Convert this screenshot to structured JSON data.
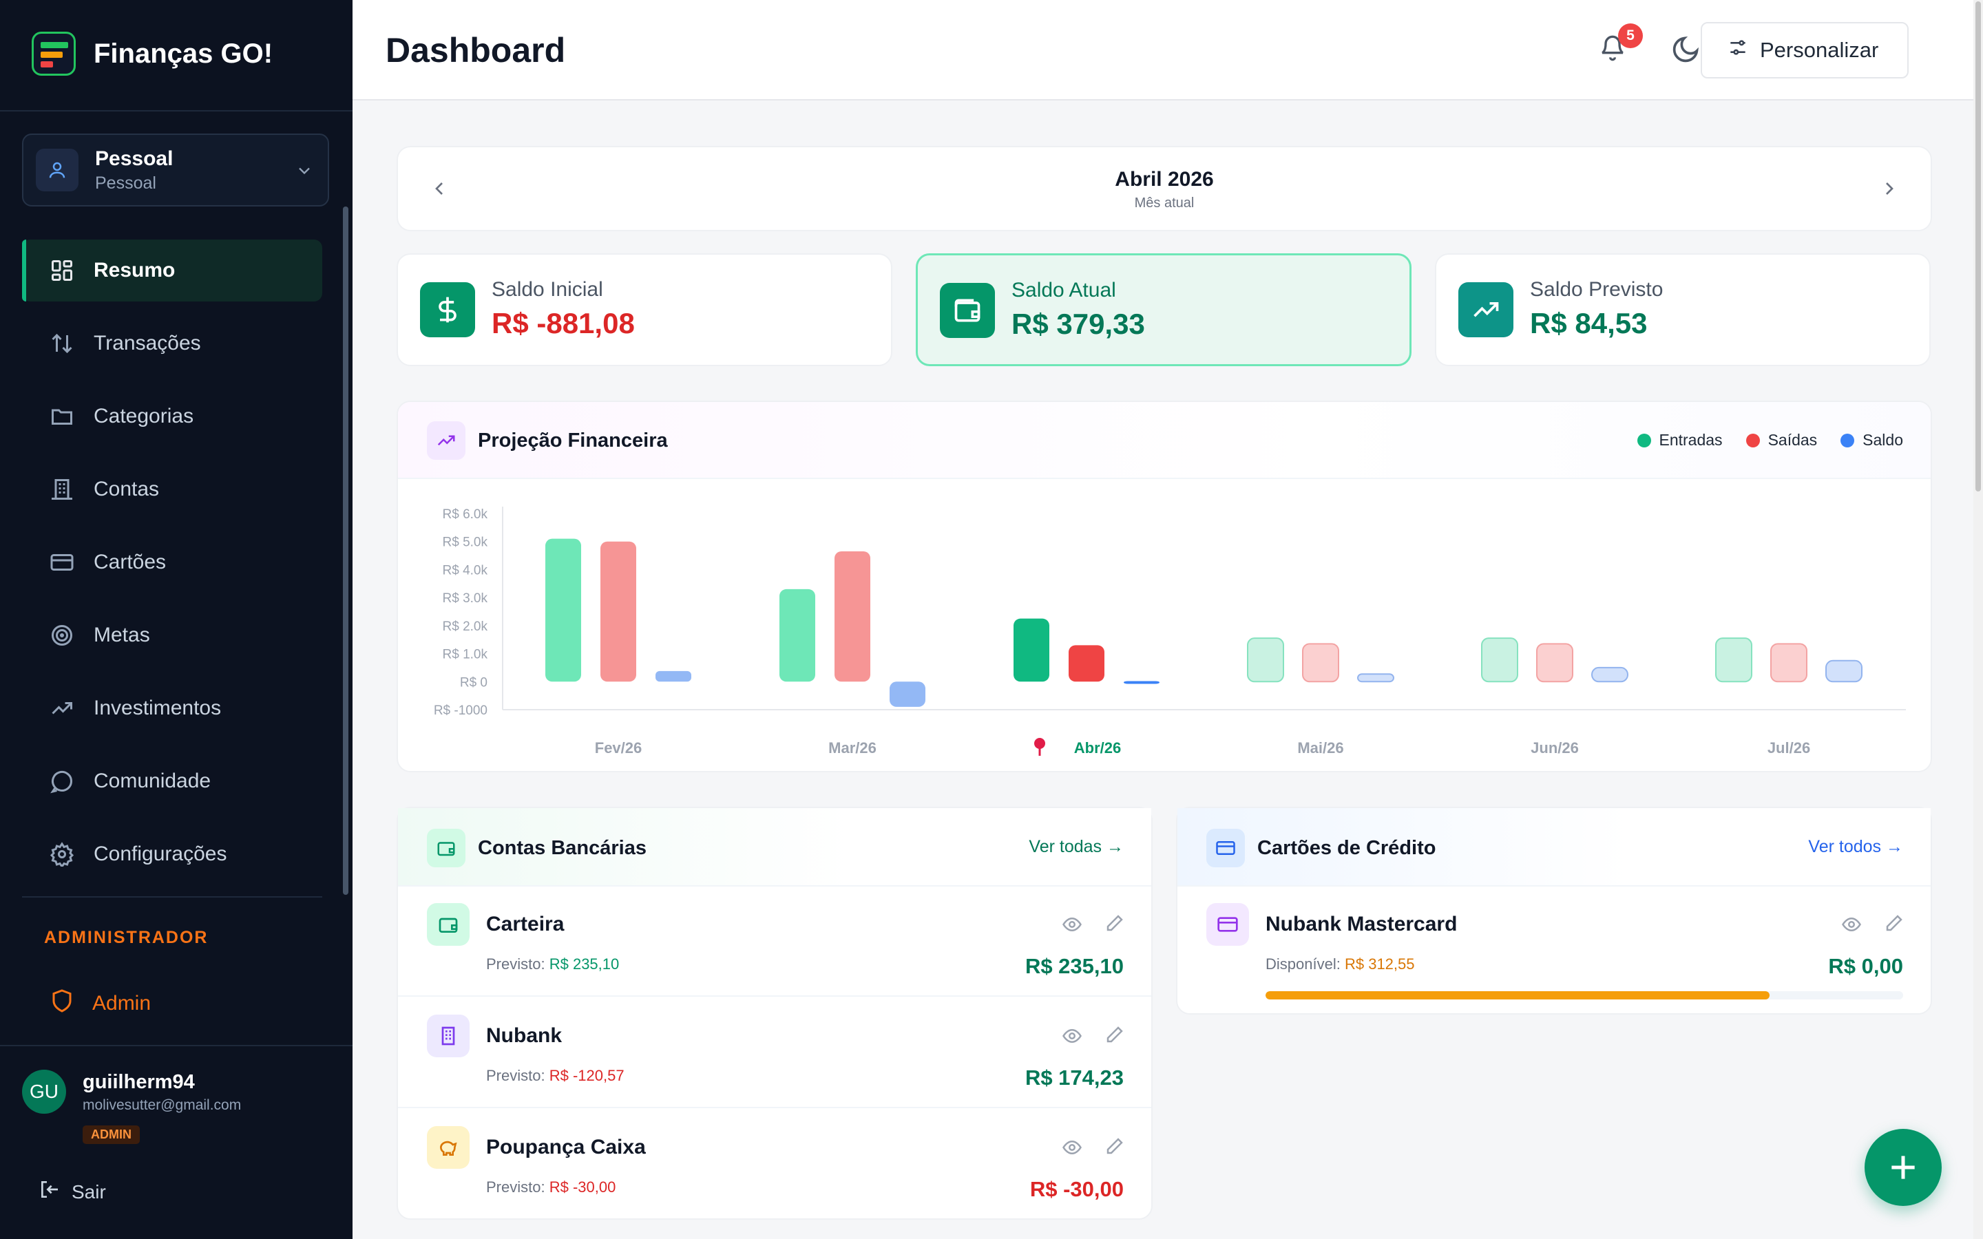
{
  "app": {
    "name": "Finanças GO!"
  },
  "profile": {
    "name": "Pessoal",
    "type": "Pessoal"
  },
  "nav": [
    {
      "label": "Resumo",
      "icon": "dashboard-icon",
      "active": true
    },
    {
      "label": "Transações",
      "icon": "arrows-updown-icon"
    },
    {
      "label": "Categorias",
      "icon": "folder-icon"
    },
    {
      "label": "Contas",
      "icon": "building-icon"
    },
    {
      "label": "Cartões",
      "icon": "card-icon"
    },
    {
      "label": "Metas",
      "icon": "target-icon"
    },
    {
      "label": "Investimentos",
      "icon": "trending-up-icon"
    },
    {
      "label": "Comunidade",
      "icon": "chat-icon"
    },
    {
      "label": "Configurações",
      "icon": "gear-icon"
    }
  ],
  "admin": {
    "section_title": "ADMINISTRADOR",
    "item_label": "Admin"
  },
  "user": {
    "initials": "GU",
    "username": "guiilherm94",
    "email": "molivesutter@gmail.com",
    "badge": "ADMIN"
  },
  "logout_label": "Sair",
  "header": {
    "title": "Dashboard",
    "notifications": "5",
    "customize_label": "Personalizar"
  },
  "month": {
    "label": "Abril 2026",
    "sub": "Mês atual"
  },
  "kpis": [
    {
      "label": "Saldo Inicial",
      "value": "R$ -881,08",
      "color": "#dc2626",
      "icon": "dollar-icon"
    },
    {
      "label": "Saldo Atual",
      "value": "R$ 379,33",
      "color": "#047857",
      "icon": "wallet-icon"
    },
    {
      "label": "Saldo Previsto",
      "value": "R$ 84,53",
      "color": "#047857",
      "icon": "trending-up-icon"
    }
  ],
  "projection": {
    "title": "Projeção Financeira",
    "legend": [
      "Entradas",
      "Saídas",
      "Saldo"
    ]
  },
  "chart_data": {
    "type": "bar",
    "categories": [
      "Fev/26",
      "Mar/26",
      "Abr/26",
      "Mai/26",
      "Jun/26",
      "Jul/26"
    ],
    "current_category": "Abr/26",
    "series": [
      {
        "name": "Entradas",
        "color": "#10b981",
        "values": [
          5100,
          3300,
          2250,
          1550,
          1550,
          1550
        ]
      },
      {
        "name": "Saídas",
        "color": "#ef4444",
        "values": [
          5000,
          4650,
          1300,
          1350,
          1350,
          1350
        ]
      },
      {
        "name": "Saldo",
        "color": "#3b82f6",
        "values": [
          380,
          -900,
          20,
          270,
          500,
          750
        ]
      }
    ],
    "projected_from": "Mai/26",
    "y_ticks": [
      "R$ 6.0k",
      "R$ 5.0k",
      "R$ 4.0k",
      "R$ 3.0k",
      "R$ 2.0k",
      "R$ 1.0k",
      "R$ 0",
      "R$ -1000"
    ],
    "ylim": [
      -1000,
      6000
    ],
    "grid": false,
    "legend_position": "top-right"
  },
  "accounts": {
    "title": "Contas Bancárias",
    "link": "Ver todas →",
    "prev_label": "Previsto:",
    "items": [
      {
        "name": "Carteira",
        "forecast": "R$ 235,10",
        "forecast_color": "#059669",
        "value": "R$ 235,10",
        "value_color": "#047857",
        "icon": "wallet-icon"
      },
      {
        "name": "Nubank",
        "forecast": "R$ -120,57",
        "forecast_color": "#dc2626",
        "value": "R$ 174,23",
        "value_color": "#047857",
        "icon": "building-icon"
      },
      {
        "name": "Poupança Caixa",
        "forecast": "R$ -30,00",
        "forecast_color": "#dc2626",
        "value": "R$ -30,00",
        "value_color": "#dc2626",
        "icon": "piggy-bank-icon"
      }
    ]
  },
  "cards": {
    "title": "Cartões de Crédito",
    "link": "Ver todos →",
    "items": [
      {
        "name": "Nubank Mastercard",
        "available_label": "Disponível:",
        "available": "R$ 312,55",
        "value": "R$ 0,00",
        "usage": 0.79
      }
    ]
  }
}
